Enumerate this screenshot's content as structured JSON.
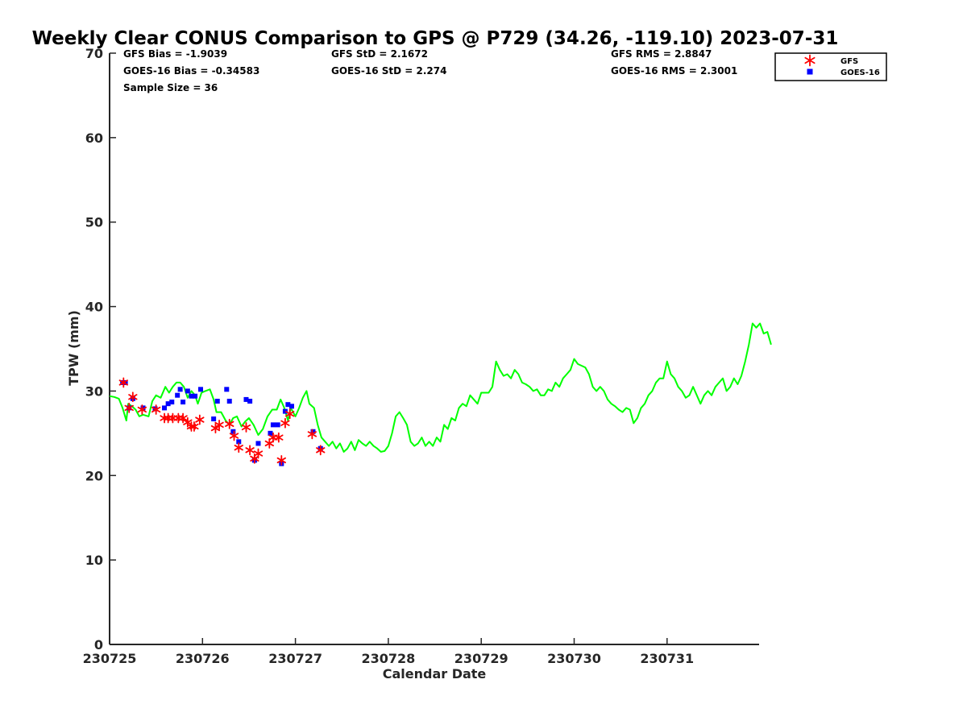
{
  "chart_data": {
    "type": "scatter",
    "title": "Weekly Clear CONUS Comparison to GPS @ P729 (34.26, -119.10) 2023-07-31",
    "xlabel": "Calendar Date",
    "ylabel": "TPW (mm)",
    "xlim": [
      0,
      7
    ],
    "ylim": [
      0,
      70
    ],
    "x_tick_labels": [
      "230725",
      "230726",
      "230727",
      "230728",
      "230729",
      "230730",
      "230731"
    ],
    "x_tick_values": [
      0,
      1,
      2,
      3,
      4,
      5,
      6
    ],
    "y_ticks": [
      0,
      10,
      20,
      30,
      40,
      50,
      60,
      70
    ],
    "legend_position": "top-right",
    "stats": [
      "GFS Bias = -1.9039",
      "GOES-16 Bias = -0.34583",
      "Sample Size = 36",
      "GFS StD = 2.1672",
      "GOES-16 StD = 2.274",
      "GFS RMS = 2.8847",
      "GOES-16 RMS = 2.3001"
    ],
    "series": [
      {
        "name": "GFS",
        "kind": "scatter",
        "marker": "asterisk",
        "color": "#ff0000",
        "points": [
          [
            0.15,
            31.0
          ],
          [
            0.25,
            29.3
          ],
          [
            0.21,
            28.0
          ],
          [
            0.35,
            27.8
          ],
          [
            0.5,
            27.8
          ],
          [
            0.59,
            26.8
          ],
          [
            0.63,
            26.8
          ],
          [
            0.68,
            26.8
          ],
          [
            0.74,
            26.8
          ],
          [
            0.79,
            26.8
          ],
          [
            0.84,
            26.3
          ],
          [
            0.88,
            25.8
          ],
          [
            0.91,
            25.8
          ],
          [
            0.97,
            26.6
          ],
          [
            1.14,
            25.6
          ],
          [
            1.18,
            26.0
          ],
          [
            1.29,
            26.1
          ],
          [
            1.34,
            24.7
          ],
          [
            1.39,
            23.3
          ],
          [
            1.47,
            25.7
          ],
          [
            1.51,
            23.0
          ],
          [
            1.56,
            22.0
          ],
          [
            1.6,
            22.6
          ],
          [
            1.72,
            23.8
          ],
          [
            1.76,
            24.5
          ],
          [
            1.82,
            24.5
          ],
          [
            1.85,
            21.8
          ],
          [
            1.89,
            26.2
          ],
          [
            1.94,
            27.3
          ],
          [
            2.18,
            24.9
          ],
          [
            2.27,
            23.0
          ]
        ]
      },
      {
        "name": "GOES-16",
        "kind": "scatter",
        "marker": "square",
        "color": "#0000ff",
        "points": [
          [
            0.14,
            31.0
          ],
          [
            0.17,
            31.0
          ],
          [
            0.21,
            28.0
          ],
          [
            0.25,
            29.1
          ],
          [
            0.36,
            28.0
          ],
          [
            0.49,
            27.9
          ],
          [
            0.59,
            28.0
          ],
          [
            0.63,
            28.5
          ],
          [
            0.67,
            28.7
          ],
          [
            0.73,
            29.5
          ],
          [
            0.76,
            30.2
          ],
          [
            0.79,
            28.7
          ],
          [
            0.84,
            30.0
          ],
          [
            0.88,
            29.4
          ],
          [
            0.92,
            29.4
          ],
          [
            0.98,
            30.2
          ],
          [
            1.12,
            26.7
          ],
          [
            1.16,
            28.8
          ],
          [
            1.26,
            30.2
          ],
          [
            1.29,
            28.8
          ],
          [
            1.33,
            25.2
          ],
          [
            1.39,
            24.0
          ],
          [
            1.47,
            29.0
          ],
          [
            1.51,
            28.8
          ],
          [
            1.56,
            21.8
          ],
          [
            1.6,
            23.8
          ],
          [
            1.73,
            25.0
          ],
          [
            1.76,
            26.0
          ],
          [
            1.81,
            26.0
          ],
          [
            1.85,
            21.4
          ],
          [
            1.89,
            27.6
          ],
          [
            1.92,
            28.4
          ],
          [
            1.96,
            28.2
          ],
          [
            2.19,
            25.2
          ],
          [
            2.27,
            23.2
          ]
        ]
      },
      {
        "name": "GPS",
        "kind": "line",
        "color": "#00ff00",
        "points": [
          [
            0.0,
            29.4
          ],
          [
            0.05,
            29.3
          ],
          [
            0.1,
            29.1
          ],
          [
            0.14,
            28.0
          ],
          [
            0.18,
            26.5
          ],
          [
            0.2,
            28.5
          ],
          [
            0.24,
            28.2
          ],
          [
            0.28,
            27.8
          ],
          [
            0.32,
            27.0
          ],
          [
            0.36,
            27.2
          ],
          [
            0.42,
            27.0
          ],
          [
            0.46,
            28.8
          ],
          [
            0.5,
            29.5
          ],
          [
            0.55,
            29.2
          ],
          [
            0.6,
            30.5
          ],
          [
            0.64,
            29.8
          ],
          [
            0.68,
            30.5
          ],
          [
            0.72,
            31.0
          ],
          [
            0.76,
            31.0
          ],
          [
            0.8,
            30.5
          ],
          [
            0.84,
            29.2
          ],
          [
            0.88,
            30.0
          ],
          [
            0.92,
            29.5
          ],
          [
            0.95,
            28.5
          ],
          [
            0.99,
            29.8
          ],
          [
            1.03,
            30.0
          ],
          [
            1.08,
            30.2
          ],
          [
            1.12,
            29.0
          ],
          [
            1.15,
            27.5
          ],
          [
            1.2,
            27.5
          ],
          [
            1.25,
            26.5
          ],
          [
            1.29,
            26.0
          ],
          [
            1.33,
            26.8
          ],
          [
            1.37,
            27.0
          ],
          [
            1.42,
            25.8
          ],
          [
            1.46,
            26.4
          ],
          [
            1.5,
            26.8
          ],
          [
            1.55,
            26.0
          ],
          [
            1.6,
            24.8
          ],
          [
            1.65,
            25.5
          ],
          [
            1.7,
            27.0
          ],
          [
            1.75,
            27.8
          ],
          [
            1.8,
            27.8
          ],
          [
            1.84,
            29.0
          ],
          [
            1.88,
            28.0
          ],
          [
            1.92,
            26.5
          ],
          [
            1.95,
            28.0
          ],
          [
            2.0,
            27.0
          ],
          [
            2.04,
            28.0
          ],
          [
            2.08,
            29.2
          ],
          [
            2.12,
            30.0
          ],
          [
            2.15,
            28.5
          ],
          [
            2.2,
            28.0
          ],
          [
            2.24,
            26.0
          ],
          [
            2.28,
            24.5
          ],
          [
            2.32,
            24.0
          ],
          [
            2.36,
            23.5
          ],
          [
            2.4,
            24.0
          ],
          [
            2.44,
            23.2
          ],
          [
            2.48,
            23.8
          ],
          [
            2.52,
            22.8
          ],
          [
            2.56,
            23.2
          ],
          [
            2.6,
            24.0
          ],
          [
            2.64,
            23.0
          ],
          [
            2.68,
            24.2
          ],
          [
            2.72,
            23.8
          ],
          [
            2.76,
            23.5
          ],
          [
            2.8,
            24.0
          ],
          [
            2.84,
            23.5
          ],
          [
            2.88,
            23.2
          ],
          [
            2.92,
            22.8
          ],
          [
            2.96,
            22.9
          ],
          [
            3.0,
            23.5
          ],
          [
            3.04,
            25.0
          ],
          [
            3.08,
            27.0
          ],
          [
            3.12,
            27.5
          ],
          [
            3.16,
            26.8
          ],
          [
            3.2,
            26.0
          ],
          [
            3.24,
            24.0
          ],
          [
            3.28,
            23.5
          ],
          [
            3.32,
            23.8
          ],
          [
            3.36,
            24.5
          ],
          [
            3.4,
            23.5
          ],
          [
            3.44,
            24.0
          ],
          [
            3.48,
            23.5
          ],
          [
            3.52,
            24.5
          ],
          [
            3.56,
            24.0
          ],
          [
            3.6,
            26.0
          ],
          [
            3.64,
            25.5
          ],
          [
            3.68,
            26.8
          ],
          [
            3.72,
            26.5
          ],
          [
            3.76,
            28.0
          ],
          [
            3.8,
            28.5
          ],
          [
            3.84,
            28.2
          ],
          [
            3.88,
            29.5
          ],
          [
            3.92,
            29.0
          ],
          [
            3.96,
            28.5
          ],
          [
            4.0,
            29.8
          ],
          [
            4.04,
            29.8
          ],
          [
            4.08,
            29.8
          ],
          [
            4.12,
            30.5
          ],
          [
            4.16,
            33.5
          ],
          [
            4.2,
            32.5
          ],
          [
            4.24,
            31.8
          ],
          [
            4.28,
            32.0
          ],
          [
            4.32,
            31.5
          ],
          [
            4.36,
            32.5
          ],
          [
            4.4,
            32.0
          ],
          [
            4.44,
            31.0
          ],
          [
            4.48,
            30.8
          ],
          [
            4.52,
            30.5
          ],
          [
            4.56,
            30.0
          ],
          [
            4.6,
            30.2
          ],
          [
            4.64,
            29.5
          ],
          [
            4.68,
            29.5
          ],
          [
            4.72,
            30.2
          ],
          [
            4.76,
            30.0
          ],
          [
            4.8,
            31.0
          ],
          [
            4.84,
            30.5
          ],
          [
            4.88,
            31.5
          ],
          [
            4.92,
            32.0
          ],
          [
            4.96,
            32.5
          ],
          [
            5.0,
            33.8
          ],
          [
            5.04,
            33.2
          ],
          [
            5.08,
            33.0
          ],
          [
            5.12,
            32.8
          ],
          [
            5.16,
            32.0
          ],
          [
            5.2,
            30.5
          ],
          [
            5.24,
            30.0
          ],
          [
            5.28,
            30.5
          ],
          [
            5.32,
            30.0
          ],
          [
            5.36,
            29.0
          ],
          [
            5.4,
            28.5
          ],
          [
            5.44,
            28.2
          ],
          [
            5.48,
            27.8
          ],
          [
            5.52,
            27.5
          ],
          [
            5.56,
            28.0
          ],
          [
            5.6,
            27.8
          ],
          [
            5.64,
            26.2
          ],
          [
            5.68,
            26.8
          ],
          [
            5.72,
            28.0
          ],
          [
            5.76,
            28.5
          ],
          [
            5.8,
            29.5
          ],
          [
            5.84,
            30.0
          ],
          [
            5.88,
            31.0
          ],
          [
            5.92,
            31.5
          ],
          [
            5.96,
            31.5
          ],
          [
            6.0,
            33.5
          ],
          [
            6.04,
            32.0
          ],
          [
            6.08,
            31.5
          ],
          [
            6.12,
            30.5
          ],
          [
            6.16,
            30.0
          ],
          [
            6.2,
            29.2
          ],
          [
            6.24,
            29.5
          ],
          [
            6.28,
            30.5
          ],
          [
            6.32,
            29.5
          ],
          [
            6.36,
            28.5
          ],
          [
            6.4,
            29.5
          ],
          [
            6.44,
            30.0
          ],
          [
            6.48,
            29.5
          ],
          [
            6.52,
            30.5
          ],
          [
            6.56,
            31.0
          ],
          [
            6.6,
            31.5
          ],
          [
            6.64,
            30.0
          ],
          [
            6.68,
            30.5
          ],
          [
            6.72,
            31.5
          ],
          [
            6.76,
            30.8
          ],
          [
            6.8,
            31.8
          ],
          [
            6.84,
            33.5
          ],
          [
            6.88,
            35.5
          ],
          [
            6.92,
            38.0
          ],
          [
            6.96,
            37.5
          ],
          [
            7.0,
            38.0
          ],
          [
            7.04,
            36.8
          ],
          [
            7.08,
            37.0
          ],
          [
            7.12,
            35.5
          ]
        ]
      }
    ]
  }
}
